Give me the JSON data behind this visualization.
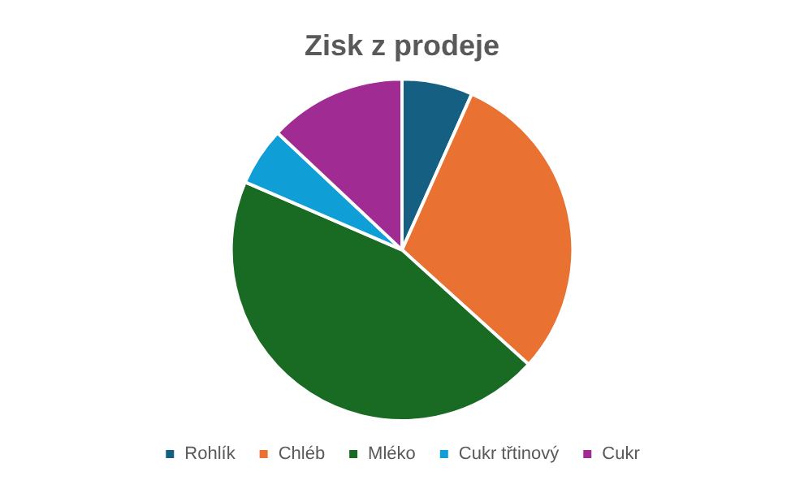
{
  "chart_data": {
    "type": "pie",
    "title": "Zisk z prodeje",
    "categories": [
      "Rohlík",
      "Chléb",
      "Mléko",
      "Cukr třtinový",
      "Cukr"
    ],
    "values": [
      6.7,
      30,
      44.8,
      5.5,
      13
    ],
    "colors": [
      "#156082",
      "#e97132",
      "#196b24",
      "#0f9ed5",
      "#a02b93"
    ],
    "legend": "bottom"
  }
}
